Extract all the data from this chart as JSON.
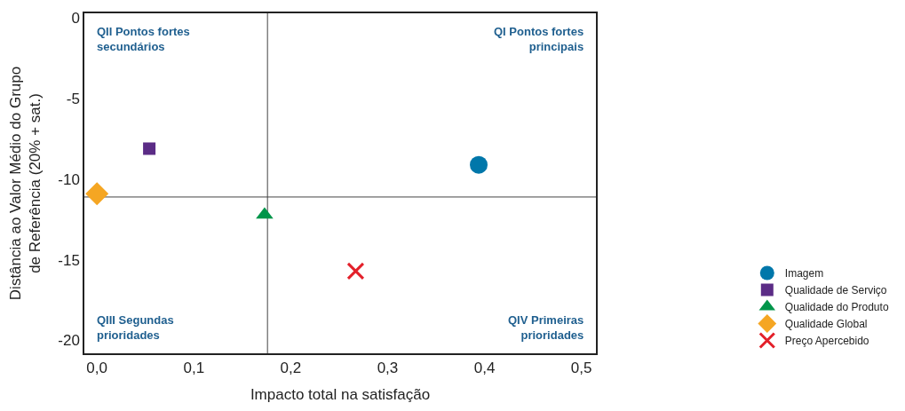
{
  "chart_data": {
    "type": "scatter",
    "xlabel": "Impacto total na satisfação",
    "ylabel": "Distância ao Valor Médio do Grupo\nde Referência (20% + sat.)",
    "xlim": [
      -0.013,
      0.515
    ],
    "ylim": [
      -20.8,
      0.3
    ],
    "xticks": [
      {
        "value": 0,
        "label": "0,0"
      },
      {
        "value": 0.1,
        "label": "0,1"
      },
      {
        "value": 0.2,
        "label": "0,2"
      },
      {
        "value": 0.3,
        "label": "0,3"
      },
      {
        "value": 0.4,
        "label": "0,4"
      },
      {
        "value": 0.5,
        "label": "0,5"
      }
    ],
    "yticks": [
      0,
      -5,
      -10,
      -15,
      -20
    ],
    "grid": false,
    "legend": "bottom right",
    "series": [
      {
        "name": "Imagem",
        "color": "#0077aa",
        "marker": "circle",
        "x": [
          0.394
        ],
        "values": [
          -9.1
        ]
      },
      {
        "name": "Qualidade de Serviço",
        "color": "#5b2c86",
        "marker": "square",
        "x": [
          0.054
        ],
        "values": [
          -8.1
        ]
      },
      {
        "name": "Qualidade do Produto",
        "color": "#00954a",
        "marker": "triangle",
        "x": [
          0.173
        ],
        "values": [
          -12.2
        ]
      },
      {
        "name": "Qualidade Global",
        "color": "#f5a623",
        "marker": "diamond",
        "x": [
          0.0
        ],
        "values": [
          -10.9
        ]
      },
      {
        "name": "Preço Apercebido",
        "color": "#e3202a",
        "marker": "cross",
        "x": [
          0.267
        ],
        "values": [
          -15.7
        ]
      }
    ],
    "ref_lines": [
      {
        "axis": "x",
        "value": 0.176,
        "color": "#444444"
      },
      {
        "axis": "y",
        "value": -11.1,
        "color": "#444444"
      }
    ],
    "annotations": [
      "QII Pontos fortes\nsecundários",
      "QI Pontos fortes\nprincipais",
      "QIII Segundas\nprioridades",
      "QIV Primeiras\nprioridades"
    ]
  }
}
